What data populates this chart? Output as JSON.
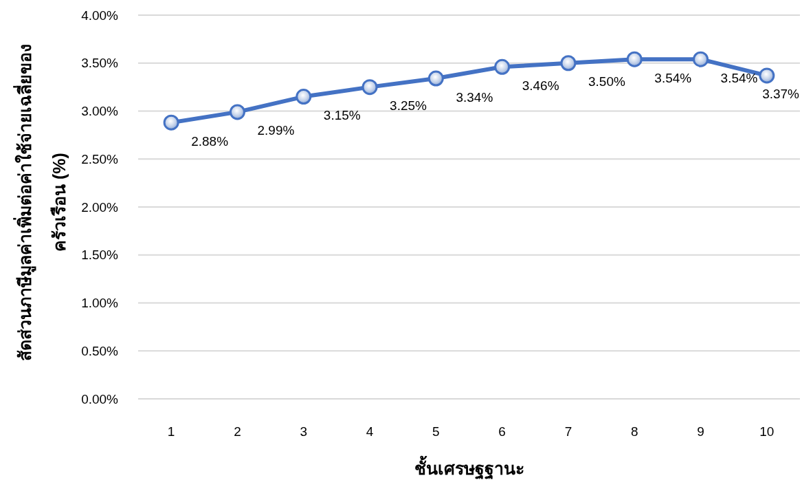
{
  "chart_data": {
    "type": "line",
    "xlabel": "ชั้นเศรษฐฐานะ",
    "ylabel": "สัดส่วนภาษีมูลค่าเพิ่มต่อค่าใช้จ่ายเฉลี่ยของครัวเรือน (%)",
    "categories": [
      "1",
      "2",
      "3",
      "4",
      "5",
      "6",
      "7",
      "8",
      "9",
      "10"
    ],
    "series": [
      {
        "color": "#4472c4",
        "values": [
          2.88,
          2.99,
          3.15,
          3.25,
          3.34,
          3.46,
          3.5,
          3.54,
          3.54,
          3.37
        ],
        "value_labels": [
          "2.88%",
          "2.99%",
          "3.15%",
          "3.25%",
          "3.34%",
          "3.46%",
          "3.50%",
          "3.54%",
          "3.54%",
          "3.37%"
        ]
      }
    ],
    "ylim": [
      0,
      4
    ],
    "yticks": [
      {
        "value": 0,
        "label": "0.00%"
      },
      {
        "value": 0.5,
        "label": "0.50%"
      },
      {
        "value": 1,
        "label": "1.00%"
      },
      {
        "value": 1.5,
        "label": "1.50%"
      },
      {
        "value": 2,
        "label": "2.00%"
      },
      {
        "value": 2.5,
        "label": "2.50%"
      },
      {
        "value": 3,
        "label": "3.00%"
      },
      {
        "value": 3.5,
        "label": "3.50%"
      },
      {
        "value": 4,
        "label": "4.00%"
      }
    ],
    "grid": "y",
    "marker": "circle",
    "line_style": "solid"
  }
}
